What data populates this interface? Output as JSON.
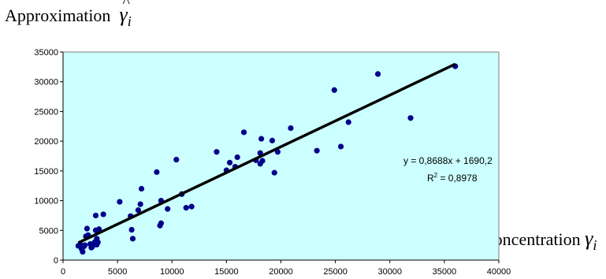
{
  "chart_data": {
    "type": "scatter",
    "y_axis_title": {
      "text": "Approximation",
      "symbol": "γ",
      "hat": "^",
      "subscript": "i"
    },
    "x_axis_title": {
      "text": "Concentration",
      "symbol": "γ",
      "subscript": "i"
    },
    "xlim": [
      0,
      40000
    ],
    "ylim": [
      0,
      35000
    ],
    "x_ticks": [
      "0",
      "5000",
      "10000",
      "15000",
      "20000",
      "25000",
      "30000",
      "35000",
      "40000"
    ],
    "y_ticks": [
      "0",
      "5000",
      "10000",
      "15000",
      "20000",
      "25000",
      "30000",
      "35000"
    ],
    "plot_background": "#ccffff",
    "point_color": "#00008b",
    "trendline": {
      "slope": 0.8688,
      "intercept": 1690.2,
      "x_range": [
        1400,
        36000
      ],
      "color": "#000000"
    },
    "equation_text": "y = 0,8688x + 1690,2",
    "r2_label": "R",
    "r2_exp": "2",
    "r2_value": " = 0,8978",
    "points": [
      [
        1400,
        2400
      ],
      [
        1600,
        2600
      ],
      [
        1700,
        1900
      ],
      [
        1800,
        1400
      ],
      [
        1900,
        2300
      ],
      [
        2000,
        2500
      ],
      [
        2100,
        4000
      ],
      [
        2200,
        5300
      ],
      [
        2300,
        4200
      ],
      [
        2500,
        2700
      ],
      [
        2600,
        2100
      ],
      [
        2700,
        2300
      ],
      [
        2800,
        2700
      ],
      [
        2900,
        3000
      ],
      [
        3000,
        5000
      ],
      [
        3000,
        7500
      ],
      [
        3100,
        3600
      ],
      [
        3100,
        2600
      ],
      [
        3200,
        3000
      ],
      [
        3300,
        5200
      ],
      [
        3700,
        7700
      ],
      [
        5200,
        9800
      ],
      [
        6200,
        7400
      ],
      [
        6300,
        5100
      ],
      [
        6400,
        3600
      ],
      [
        6900,
        8400
      ],
      [
        7100,
        9400
      ],
      [
        7200,
        12000
      ],
      [
        8600,
        14800
      ],
      [
        8900,
        5800
      ],
      [
        9000,
        6200
      ],
      [
        9000,
        10000
      ],
      [
        9600,
        8600
      ],
      [
        10400,
        16900
      ],
      [
        10900,
        11100
      ],
      [
        11300,
        8800
      ],
      [
        11800,
        9000
      ],
      [
        14100,
        18200
      ],
      [
        15000,
        15100
      ],
      [
        15300,
        16400
      ],
      [
        15800,
        15700
      ],
      [
        16000,
        17300
      ],
      [
        16600,
        21500
      ],
      [
        17700,
        16800
      ],
      [
        18100,
        16200
      ],
      [
        18100,
        18000
      ],
      [
        18200,
        20400
      ],
      [
        18300,
        16700
      ],
      [
        19200,
        20100
      ],
      [
        19400,
        14700
      ],
      [
        19700,
        18200
      ],
      [
        20900,
        22200
      ],
      [
        23300,
        18400
      ],
      [
        24900,
        28600
      ],
      [
        25500,
        19100
      ],
      [
        26200,
        23200
      ],
      [
        28900,
        31300
      ],
      [
        31900,
        23900
      ],
      [
        36000,
        32600
      ]
    ]
  }
}
